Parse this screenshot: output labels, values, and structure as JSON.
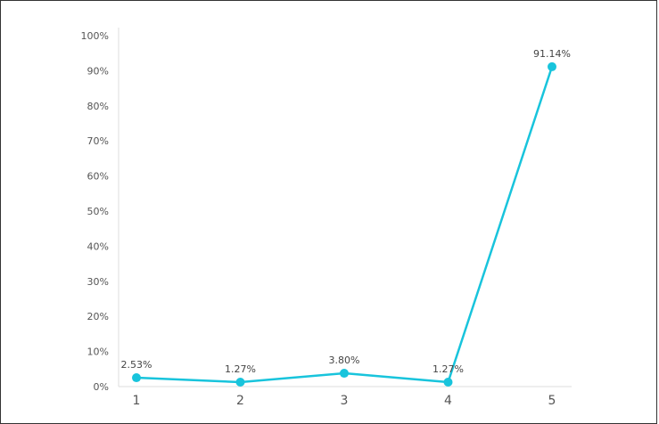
{
  "chart_data": {
    "type": "line",
    "categories": [
      "1",
      "2",
      "3",
      "4",
      "5"
    ],
    "series": [
      {
        "values": [
          2.53,
          1.27,
          3.8,
          1.27,
          91.14
        ],
        "data_labels": [
          "2.53%",
          "1.27%",
          "3.80%",
          "1.27%",
          "91.14%"
        ]
      }
    ],
    "y_tick_labels": [
      "0%",
      "10%",
      "20%",
      "30%",
      "40%",
      "50%",
      "60%",
      "70%",
      "80%",
      "90%",
      "100%"
    ],
    "ylim": [
      0,
      100
    ],
    "grid": false,
    "line_color": "#18c4dc",
    "axis_color": "#dddddd"
  }
}
